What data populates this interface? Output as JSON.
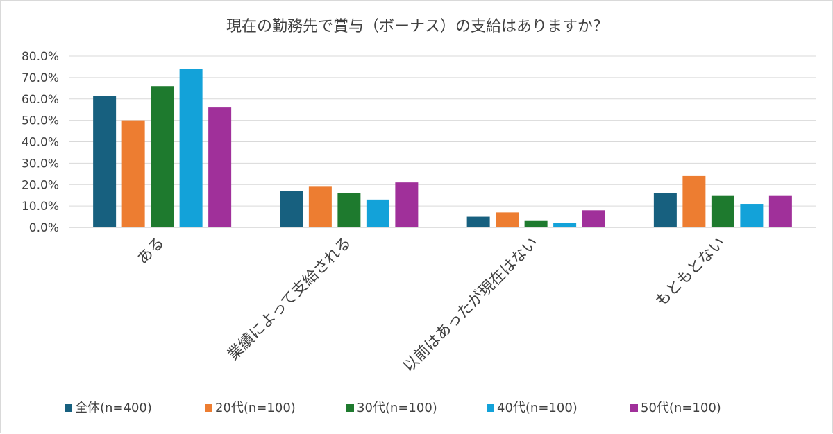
{
  "chart_data": {
    "type": "bar",
    "title": "現在の勤務先で賞与（ボーナス）の支給はありますか？",
    "categories": [
      "ある",
      "業績によって支給される",
      "以前はあったが現在はない",
      "もともとない"
    ],
    "ylim": [
      0,
      80
    ],
    "yticks": [
      "0.0%",
      "10.0%",
      "20.0%",
      "30.0%",
      "40.0%",
      "50.0%",
      "60.0%",
      "70.0%",
      "80.0%"
    ],
    "grid": true,
    "legend_position": "bottom",
    "series": [
      {
        "name": "全体(n=400)",
        "color": "#17607f",
        "values": [
          61.5,
          17,
          5,
          16
        ]
      },
      {
        "name": "20代(n=100)",
        "color": "#ed7d31",
        "values": [
          50,
          19,
          7,
          24
        ]
      },
      {
        "name": "30代(n=100)",
        "color": "#1e7a2e",
        "values": [
          66,
          16,
          3,
          15
        ]
      },
      {
        "name": "40代(n=100)",
        "color": "#13a2d9",
        "values": [
          74,
          13,
          2,
          11
        ]
      },
      {
        "name": "50代(n=100)",
        "color": "#a0309a",
        "values": [
          56,
          21,
          8,
          15
        ]
      }
    ]
  }
}
